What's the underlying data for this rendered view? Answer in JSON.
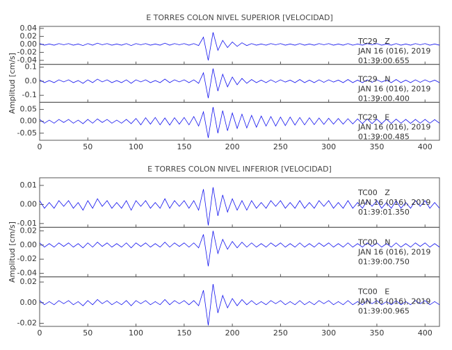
{
  "chart_data": [
    {
      "type": "line",
      "title": "E TORRES COLON NIVEL SUPERIOR [VELOCIDAD]",
      "ylabel": "Amplitud [cm/s]",
      "xlim": [
        0,
        415
      ],
      "xticks": [
        0,
        50,
        100,
        150,
        200,
        250,
        300,
        350,
        400
      ],
      "x": [
        0,
        5,
        10,
        15,
        20,
        25,
        30,
        35,
        40,
        45,
        50,
        55,
        60,
        65,
        70,
        75,
        80,
        85,
        90,
        95,
        100,
        105,
        110,
        115,
        120,
        125,
        130,
        135,
        140,
        145,
        150,
        155,
        160,
        165,
        170,
        175,
        180,
        185,
        190,
        195,
        200,
        205,
        210,
        215,
        220,
        225,
        230,
        235,
        240,
        245,
        250,
        255,
        260,
        265,
        270,
        275,
        280,
        285,
        290,
        295,
        300,
        305,
        310,
        315,
        320,
        325,
        330,
        335,
        340,
        345,
        350,
        355,
        360,
        365,
        370,
        375,
        380,
        385,
        390,
        395,
        400,
        405,
        410,
        415
      ],
      "panels": [
        {
          "ylim": [
            -0.05,
            0.045
          ],
          "yticks": [
            0.04,
            0.02,
            {
              "value": 0,
              "label": "0.00"
            },
            -0.02,
            -0.04
          ],
          "date": "JAN 16 (016), 2019",
          "time": "01:39:00.655",
          "series": [
            {
              "name": "TC29   Z",
              "color": "#1010ee",
              "values": [
                0.002,
                -0.002,
                0.001,
                -0.002,
                0.002,
                -0.001,
                0.002,
                -0.002,
                0.001,
                -0.003,
                0.002,
                -0.002,
                0.003,
                -0.001,
                0.002,
                -0.002,
                0.001,
                -0.002,
                0.002,
                -0.003,
                0.002,
                -0.001,
                0.002,
                -0.002,
                0.001,
                -0.002,
                0.003,
                -0.002,
                0.002,
                -0.001,
                0.002,
                -0.002,
                0.002,
                -0.003,
                0.018,
                -0.04,
                0.03,
                -0.015,
                0.01,
                -0.008,
                0.006,
                -0.005,
                0.004,
                -0.003,
                0.002,
                -0.002,
                0.001,
                -0.002,
                0.002,
                -0.001,
                0.002,
                -0.002,
                0.001,
                -0.002,
                0.002,
                -0.002,
                0.001,
                -0.002,
                0.002,
                -0.001,
                0.002,
                -0.002,
                0.001,
                -0.002,
                0.002,
                -0.002,
                0.001,
                -0.002,
                0.002,
                -0.001,
                0.002,
                -0.002,
                0.001,
                -0.002,
                0.002,
                -0.002,
                0.001,
                -0.002,
                0.002,
                -0.001,
                0.002,
                -0.002,
                0.001,
                -0.002
              ]
            }
          ]
        },
        {
          "ylim": [
            -0.15,
            0.12
          ],
          "yticks": [
            0.1,
            {
              "value": 0,
              "label": "0.0"
            },
            -0.1
          ],
          "date": "JAN 16 (016), 2019",
          "time": "01:39:00.400",
          "series": [
            {
              "name": "TC29   N",
              "color": "#1010ee",
              "values": [
                0.01,
                -0.01,
                0.005,
                -0.01,
                0.01,
                -0.005,
                0.01,
                -0.01,
                0.005,
                -0.015,
                0.01,
                -0.01,
                0.015,
                -0.005,
                0.01,
                -0.01,
                0.005,
                -0.01,
                0.01,
                -0.015,
                0.01,
                -0.005,
                0.01,
                -0.01,
                0.005,
                -0.01,
                0.015,
                -0.01,
                0.01,
                -0.005,
                0.01,
                -0.01,
                0.01,
                -0.015,
                0.06,
                -0.12,
                0.09,
                -0.07,
                0.05,
                -0.04,
                0.03,
                -0.025,
                0.02,
                -0.015,
                0.012,
                -0.01,
                0.008,
                -0.01,
                0.01,
                -0.008,
                0.01,
                -0.006,
                0.008,
                -0.01,
                0.012,
                -0.01,
                0.008,
                -0.01,
                0.01,
                -0.008,
                0.01,
                -0.006,
                0.008,
                -0.01,
                0.012,
                -0.01,
                0.008,
                -0.01,
                0.01,
                -0.008,
                0.01,
                -0.006,
                0.008,
                -0.01,
                0.012,
                -0.01,
                0.008,
                -0.01,
                0.01,
                -0.008,
                0.01,
                -0.006,
                0.008,
                -0.01
              ]
            }
          ]
        },
        {
          "ylim": [
            -0.08,
            0.08
          ],
          "yticks": [
            0.05,
            {
              "value": 0,
              "label": "0.00"
            },
            -0.05
          ],
          "date": "JAN 16 (016), 2019",
          "time": "01:39:00.485",
          "series": [
            {
              "name": "TC29   E",
              "color": "#1010ee",
              "values": [
                0.008,
                -0.008,
                0.005,
                -0.008,
                0.008,
                -0.005,
                0.008,
                -0.008,
                0.005,
                -0.01,
                0.008,
                -0.008,
                0.01,
                -0.005,
                0.008,
                -0.008,
                0.005,
                -0.008,
                0.008,
                -0.01,
                0.012,
                -0.015,
                0.015,
                -0.012,
                0.016,
                -0.015,
                0.014,
                -0.016,
                0.015,
                -0.012,
                0.016,
                -0.015,
                0.02,
                -0.02,
                0.04,
                -0.07,
                0.06,
                -0.05,
                0.045,
                -0.04,
                0.035,
                -0.03,
                0.03,
                -0.028,
                0.025,
                -0.025,
                0.022,
                -0.02,
                0.02,
                -0.02,
                0.018,
                -0.018,
                0.018,
                -0.016,
                0.016,
                -0.015,
                0.015,
                -0.014,
                0.014,
                -0.013,
                0.013,
                -0.012,
                0.012,
                -0.012,
                0.011,
                -0.011,
                0.01,
                -0.01,
                0.01,
                -0.01,
                0.009,
                -0.01,
                0.009,
                -0.009,
                0.009,
                -0.008,
                0.008,
                -0.009,
                0.008,
                -0.008,
                0.008,
                -0.008,
                0.007,
                -0.008
              ]
            }
          ]
        }
      ]
    },
    {
      "type": "line",
      "title": "E TORRES COLON NIVEL INFERIOR [VELOCIDAD]",
      "ylabel": "Amplitud [cm/s]",
      "xlim": [
        0,
        415
      ],
      "xticks": [
        0,
        50,
        100,
        150,
        200,
        250,
        300,
        350,
        400
      ],
      "x": [
        0,
        5,
        10,
        15,
        20,
        25,
        30,
        35,
        40,
        45,
        50,
        55,
        60,
        65,
        70,
        75,
        80,
        85,
        90,
        95,
        100,
        105,
        110,
        115,
        120,
        125,
        130,
        135,
        140,
        145,
        150,
        155,
        160,
        165,
        170,
        175,
        180,
        185,
        190,
        195,
        200,
        205,
        210,
        215,
        220,
        225,
        230,
        235,
        240,
        245,
        250,
        255,
        260,
        265,
        270,
        275,
        280,
        285,
        290,
        295,
        300,
        305,
        310,
        315,
        320,
        325,
        330,
        335,
        340,
        345,
        350,
        355,
        360,
        365,
        370,
        375,
        380,
        385,
        390,
        395,
        400,
        405,
        410,
        415
      ],
      "panels": [
        {
          "ylim": [
            -0.012,
            0.014
          ],
          "yticks": [
            0.01,
            {
              "value": 0,
              "label": "0.00"
            },
            -0.01
          ],
          "date": "JAN 16 (016), 2019",
          "time": "01:39:01.350",
          "series": [
            {
              "name": "TC00   Z",
              "color": "#1010ee",
              "values": [
                0.002,
                -0.002,
                0.001,
                -0.002,
                0.002,
                -0.001,
                0.002,
                -0.002,
                0.001,
                -0.003,
                0.002,
                -0.002,
                0.003,
                -0.001,
                0.002,
                -0.002,
                0.001,
                -0.002,
                0.002,
                -0.003,
                0.002,
                -0.001,
                0.002,
                -0.002,
                0.001,
                -0.002,
                0.003,
                -0.002,
                0.002,
                -0.001,
                0.002,
                -0.002,
                0.002,
                -0.003,
                0.008,
                -0.011,
                0.009,
                -0.006,
                0.005,
                -0.004,
                0.003,
                -0.003,
                0.002,
                -0.003,
                0.002,
                -0.002,
                0.001,
                -0.002,
                0.002,
                -0.001,
                0.002,
                -0.002,
                0.001,
                -0.002,
                0.002,
                -0.002,
                0.001,
                -0.002,
                0.002,
                -0.001,
                0.002,
                -0.002,
                0.001,
                -0.002,
                0.002,
                -0.002,
                0.001,
                -0.002,
                0.002,
                -0.001,
                0.002,
                -0.002,
                0.001,
                -0.002,
                0.002,
                -0.002,
                0.001,
                -0.002,
                0.002,
                -0.001,
                0.002,
                -0.002,
                0.001,
                -0.002
              ]
            }
          ]
        },
        {
          "ylim": [
            -0.045,
            0.025
          ],
          "yticks": [
            0.02,
            {
              "value": 0,
              "label": "0.00"
            },
            -0.02,
            -0.04
          ],
          "date": "JAN 16 (016), 2019",
          "time": "01:39:00.750",
          "series": [
            {
              "name": "TC00   N",
              "color": "#1010ee",
              "values": [
                0.003,
                -0.003,
                0.002,
                -0.003,
                0.003,
                -0.002,
                0.003,
                -0.003,
                0.002,
                -0.004,
                0.003,
                -0.003,
                0.004,
                -0.002,
                0.003,
                -0.003,
                0.002,
                -0.003,
                0.003,
                -0.004,
                0.003,
                -0.002,
                0.003,
                -0.003,
                0.002,
                -0.003,
                0.004,
                -0.003,
                0.003,
                -0.002,
                0.003,
                -0.003,
                0.003,
                -0.004,
                0.015,
                -0.03,
                0.02,
                -0.012,
                0.008,
                -0.006,
                0.005,
                -0.004,
                0.004,
                -0.003,
                0.003,
                -0.003,
                0.002,
                -0.003,
                0.003,
                -0.002,
                0.003,
                -0.003,
                0.002,
                -0.003,
                0.003,
                -0.003,
                0.002,
                -0.003,
                0.003,
                -0.002,
                0.003,
                -0.003,
                0.002,
                -0.003,
                0.003,
                -0.003,
                0.002,
                -0.003,
                0.003,
                -0.002,
                0.003,
                -0.003,
                0.002,
                -0.003,
                0.003,
                -0.003,
                0.002,
                -0.003,
                0.003,
                -0.002,
                0.003,
                -0.003,
                0.002,
                -0.003
              ]
            }
          ]
        },
        {
          "ylim": [
            -0.023,
            0.025
          ],
          "yticks": [
            0.02,
            {
              "value": 0,
              "label": "0.00"
            },
            -0.02
          ],
          "date": "JAN 16 (016), 2019",
          "time": "01:39:00.965",
          "series": [
            {
              "name": "TC00   E",
              "color": "#1010ee",
              "values": [
                0.002,
                -0.002,
                0.001,
                -0.002,
                0.002,
                -0.001,
                0.002,
                -0.002,
                0.001,
                -0.003,
                0.002,
                -0.002,
                0.003,
                -0.001,
                0.002,
                -0.002,
                0.001,
                -0.002,
                0.002,
                -0.003,
                0.002,
                -0.001,
                0.002,
                -0.002,
                0.001,
                -0.002,
                0.003,
                -0.002,
                0.002,
                -0.001,
                0.002,
                -0.002,
                0.002,
                -0.003,
                0.012,
                -0.022,
                0.018,
                -0.01,
                0.007,
                -0.005,
                0.004,
                -0.003,
                0.003,
                -0.002,
                0.002,
                -0.002,
                0.001,
                -0.002,
                0.002,
                -0.001,
                0.002,
                -0.002,
                0.001,
                -0.002,
                0.002,
                -0.002,
                0.001,
                -0.002,
                0.002,
                -0.001,
                0.002,
                -0.002,
                0.001,
                -0.002,
                0.002,
                -0.002,
                0.001,
                -0.002,
                0.002,
                -0.001,
                0.002,
                -0.002,
                0.001,
                -0.002,
                0.002,
                -0.002,
                0.001,
                -0.002,
                0.002,
                -0.001,
                0.002,
                -0.002,
                0.001,
                -0.002
              ]
            }
          ]
        }
      ]
    }
  ]
}
